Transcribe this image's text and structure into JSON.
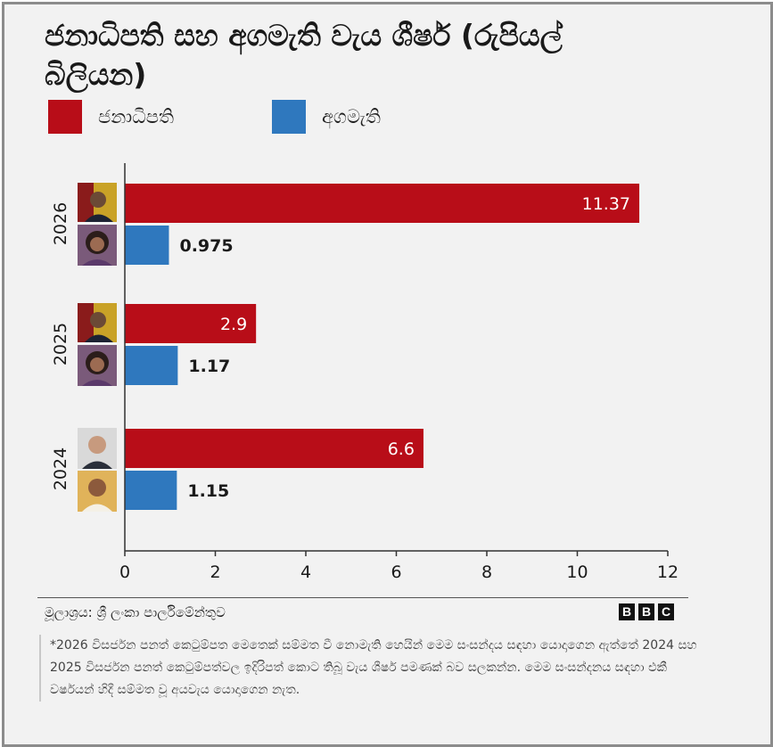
{
  "title": "ජනාධිපති සහ අගමැති වැය ශීර්ෂ (රුපියල් බිලියන)",
  "legend": [
    {
      "label": "ජනාධිපති",
      "color": "#b80d18"
    },
    {
      "label": "අගමැති",
      "color": "#2f78be"
    }
  ],
  "chart_data": {
    "type": "bar",
    "orientation": "horizontal",
    "categories": [
      "2026",
      "2025",
      "2024"
    ],
    "series": [
      {
        "name": "ජනාධිපති",
        "color": "#b80d18",
        "values": [
          11.37,
          2.9,
          6.6
        ],
        "labels": [
          "11.37",
          "2.9",
          "6.6"
        ]
      },
      {
        "name": "අගමැති",
        "color": "#2f78be",
        "values": [
          0.975,
          1.17,
          1.15
        ],
        "labels": [
          "0.975",
          "1.17",
          "1.15"
        ]
      }
    ],
    "xlim": [
      0,
      12
    ],
    "xticks": [
      "0",
      "2",
      "4",
      "6",
      "8",
      "10",
      "12"
    ],
    "grid": false,
    "legend_position": "top-left"
  },
  "source": "මූලාශ්‍රය: ශ්‍රී ලංකා පාර්ලිමේන්තුව",
  "brand": [
    "B",
    "B",
    "C"
  ],
  "note": "*2026 විසර්ජන පනත් කෙටුම්පත මෙතෙක් සම්මත වී නොමැති හෙයින් මෙම සංසන්දය සඳහා යොදාගෙන ඇත්තේ 2024 සහ 2025 විසර්ජන පනත් කෙටුම්පත්වල ඉදිරිපත් කොට තිබූ වැය ශීර්ෂ පමණක් බව සලකන්න. මෙම සංසන්දනය සඳහා එකී වර්ෂයන් හිදී සම්මත වූ අයවැය යොදාගෙන නැත."
}
